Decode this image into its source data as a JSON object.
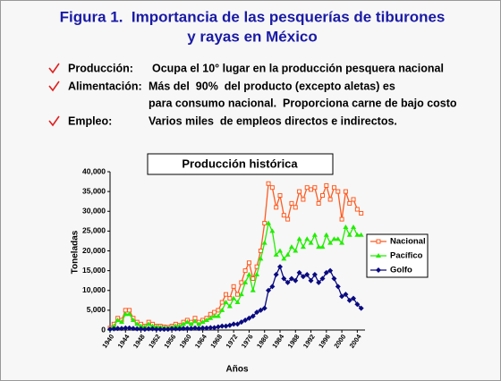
{
  "title": [
    "Figura 1.  Importancia de las pesquerías de tiburones",
    "y rayas en México"
  ],
  "bullets": [
    {
      "label": "Producción:",
      "text": [
        "Ocupa el 10° lugar en la producción pesquera nacional"
      ]
    },
    {
      "label": "Alimentación:",
      "text": [
        "Más del  90%  del producto (excepto aletas) es",
        "para consumo nacional.  Proporciona carne de bajo costo"
      ]
    },
    {
      "label": "Empleo:",
      "text": [
        "Varios miles  de empleos directos e indirectos."
      ]
    }
  ],
  "chart_data": {
    "type": "line",
    "title": "Producción histórica",
    "x_label": "Años",
    "y_label": "Toneladas",
    "x": [
      1940,
      1941,
      1942,
      1943,
      1944,
      1945,
      1946,
      1947,
      1948,
      1949,
      1950,
      1951,
      1952,
      1953,
      1954,
      1955,
      1956,
      1957,
      1958,
      1959,
      1960,
      1961,
      1962,
      1963,
      1964,
      1965,
      1966,
      1967,
      1968,
      1969,
      1970,
      1971,
      1972,
      1973,
      1974,
      1975,
      1976,
      1977,
      1978,
      1979,
      1980,
      1981,
      1982,
      1983,
      1984,
      1985,
      1986,
      1987,
      1988,
      1989,
      1990,
      1991,
      1992,
      1993,
      1994,
      1995,
      1996,
      1997,
      1998,
      1999,
      2000,
      2001,
      2002,
      2003,
      2004,
      2005
    ],
    "xlim": [
      1940,
      2006
    ],
    "xticks": [
      1940,
      1944,
      1948,
      1952,
      1956,
      1960,
      1964,
      1968,
      1972,
      1976,
      1980,
      1984,
      1988,
      1992,
      1996,
      2000,
      2004
    ],
    "ylim": [
      0,
      40000
    ],
    "yticks": [
      0,
      {
        "value": 5000,
        "label": "5,000"
      },
      {
        "value": 10000,
        "label": "10,000"
      },
      {
        "value": 15000,
        "label": "15,000"
      },
      {
        "value": 20000,
        "label": "20,000"
      },
      {
        "value": 25000,
        "label": "25,000"
      },
      {
        "value": 30000,
        "label": "30,000"
      },
      {
        "value": 35000,
        "label": "35,000"
      },
      {
        "value": 40000,
        "label": "40,000"
      }
    ],
    "legend": "right",
    "series": [
      {
        "name": "Nacional",
        "color": "#ff5a1f",
        "marker": "square",
        "values": [
          500,
          1500,
          3000,
          2500,
          5000,
          5000,
          3000,
          2000,
          1500,
          1000,
          2000,
          1500,
          1000,
          1000,
          800,
          700,
          1000,
          1500,
          1200,
          2000,
          2500,
          2000,
          3000,
          2000,
          2500,
          3000,
          4000,
          4500,
          5000,
          7000,
          9000,
          8000,
          11000,
          9000,
          12000,
          15000,
          17000,
          13000,
          16000,
          20000,
          27000,
          37000,
          36000,
          31000,
          34000,
          29000,
          28000,
          32000,
          31000,
          35000,
          33000,
          36000,
          35500,
          36000,
          32000,
          34000,
          36500,
          33000,
          36000,
          35000,
          28000,
          35000,
          32000,
          33000,
          30500,
          29500
        ]
      },
      {
        "name": "Pacífico",
        "color": "#22ee00",
        "marker": "triangle",
        "values": [
          300,
          1000,
          2500,
          2000,
          4000,
          4000,
          2500,
          1500,
          1000,
          800,
          1500,
          1000,
          800,
          700,
          600,
          500,
          700,
          1000,
          1000,
          1500,
          2000,
          1500,
          2200,
          1500,
          2000,
          2500,
          3000,
          3500,
          3500,
          5000,
          7000,
          6000,
          8000,
          7000,
          9000,
          12000,
          14000,
          10000,
          14000,
          18000,
          22000,
          27000,
          25000,
          19000,
          20000,
          18000,
          19000,
          21000,
          20000,
          23000,
          21000,
          23000,
          22000,
          24000,
          21000,
          21000,
          24000,
          22000,
          23000,
          23000,
          22000,
          26000,
          24000,
          26000,
          24000,
          24000
        ]
      },
      {
        "name": "Golfo",
        "color": "#0a0a80",
        "marker": "diamond",
        "values": [
          200,
          300,
          400,
          400,
          500,
          500,
          400,
          300,
          300,
          200,
          300,
          300,
          200,
          200,
          200,
          200,
          300,
          300,
          300,
          400,
          400,
          400,
          500,
          400,
          500,
          500,
          600,
          600,
          800,
          1000,
          1000,
          1200,
          1500,
          1500,
          2000,
          2500,
          3000,
          3500,
          4500,
          5000,
          5500,
          10000,
          11000,
          14000,
          16000,
          13000,
          12000,
          13000,
          12500,
          14500,
          13500,
          14000,
          12500,
          14000,
          12000,
          13000,
          14500,
          15000,
          13000,
          11000,
          8500,
          9000,
          7500,
          8000,
          6500,
          5500
        ]
      }
    ]
  }
}
